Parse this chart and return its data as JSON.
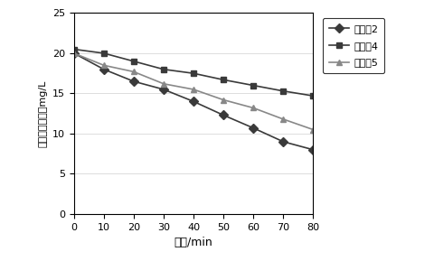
{
  "x": [
    0,
    10,
    20,
    30,
    40,
    50,
    60,
    70,
    80
  ],
  "series_order": [
    "实施例2",
    "实施例4",
    "实施例5"
  ],
  "series": {
    "实施例2": [
      20.0,
      18.0,
      16.5,
      15.5,
      14.0,
      12.3,
      10.7,
      9.0,
      8.0
    ],
    "实施例4": [
      20.5,
      20.0,
      19.0,
      18.0,
      17.5,
      16.7,
      16.0,
      15.3,
      14.7
    ],
    "实施例5": [
      20.0,
      18.5,
      17.7,
      16.2,
      15.5,
      14.2,
      13.2,
      11.8,
      10.5
    ]
  },
  "colors": {
    "实施例2": "#3a3a3a",
    "实施例4": "#3a3a3a",
    "实施例5": "#888888"
  },
  "markers": {
    "实施例2": "D",
    "实施例4": "s",
    "实施例5": "^"
  },
  "xlabel": "时间/min",
  "ylabel": "亚甲基蓝的浓度mg/L",
  "xlim": [
    0,
    80
  ],
  "ylim": [
    0,
    25
  ],
  "yticks": [
    0,
    5,
    10,
    15,
    20,
    25
  ],
  "xticks": [
    0,
    10,
    20,
    30,
    40,
    50,
    60,
    70,
    80
  ],
  "background_color": "#ffffff",
  "grid_color": "#d0d0d0"
}
